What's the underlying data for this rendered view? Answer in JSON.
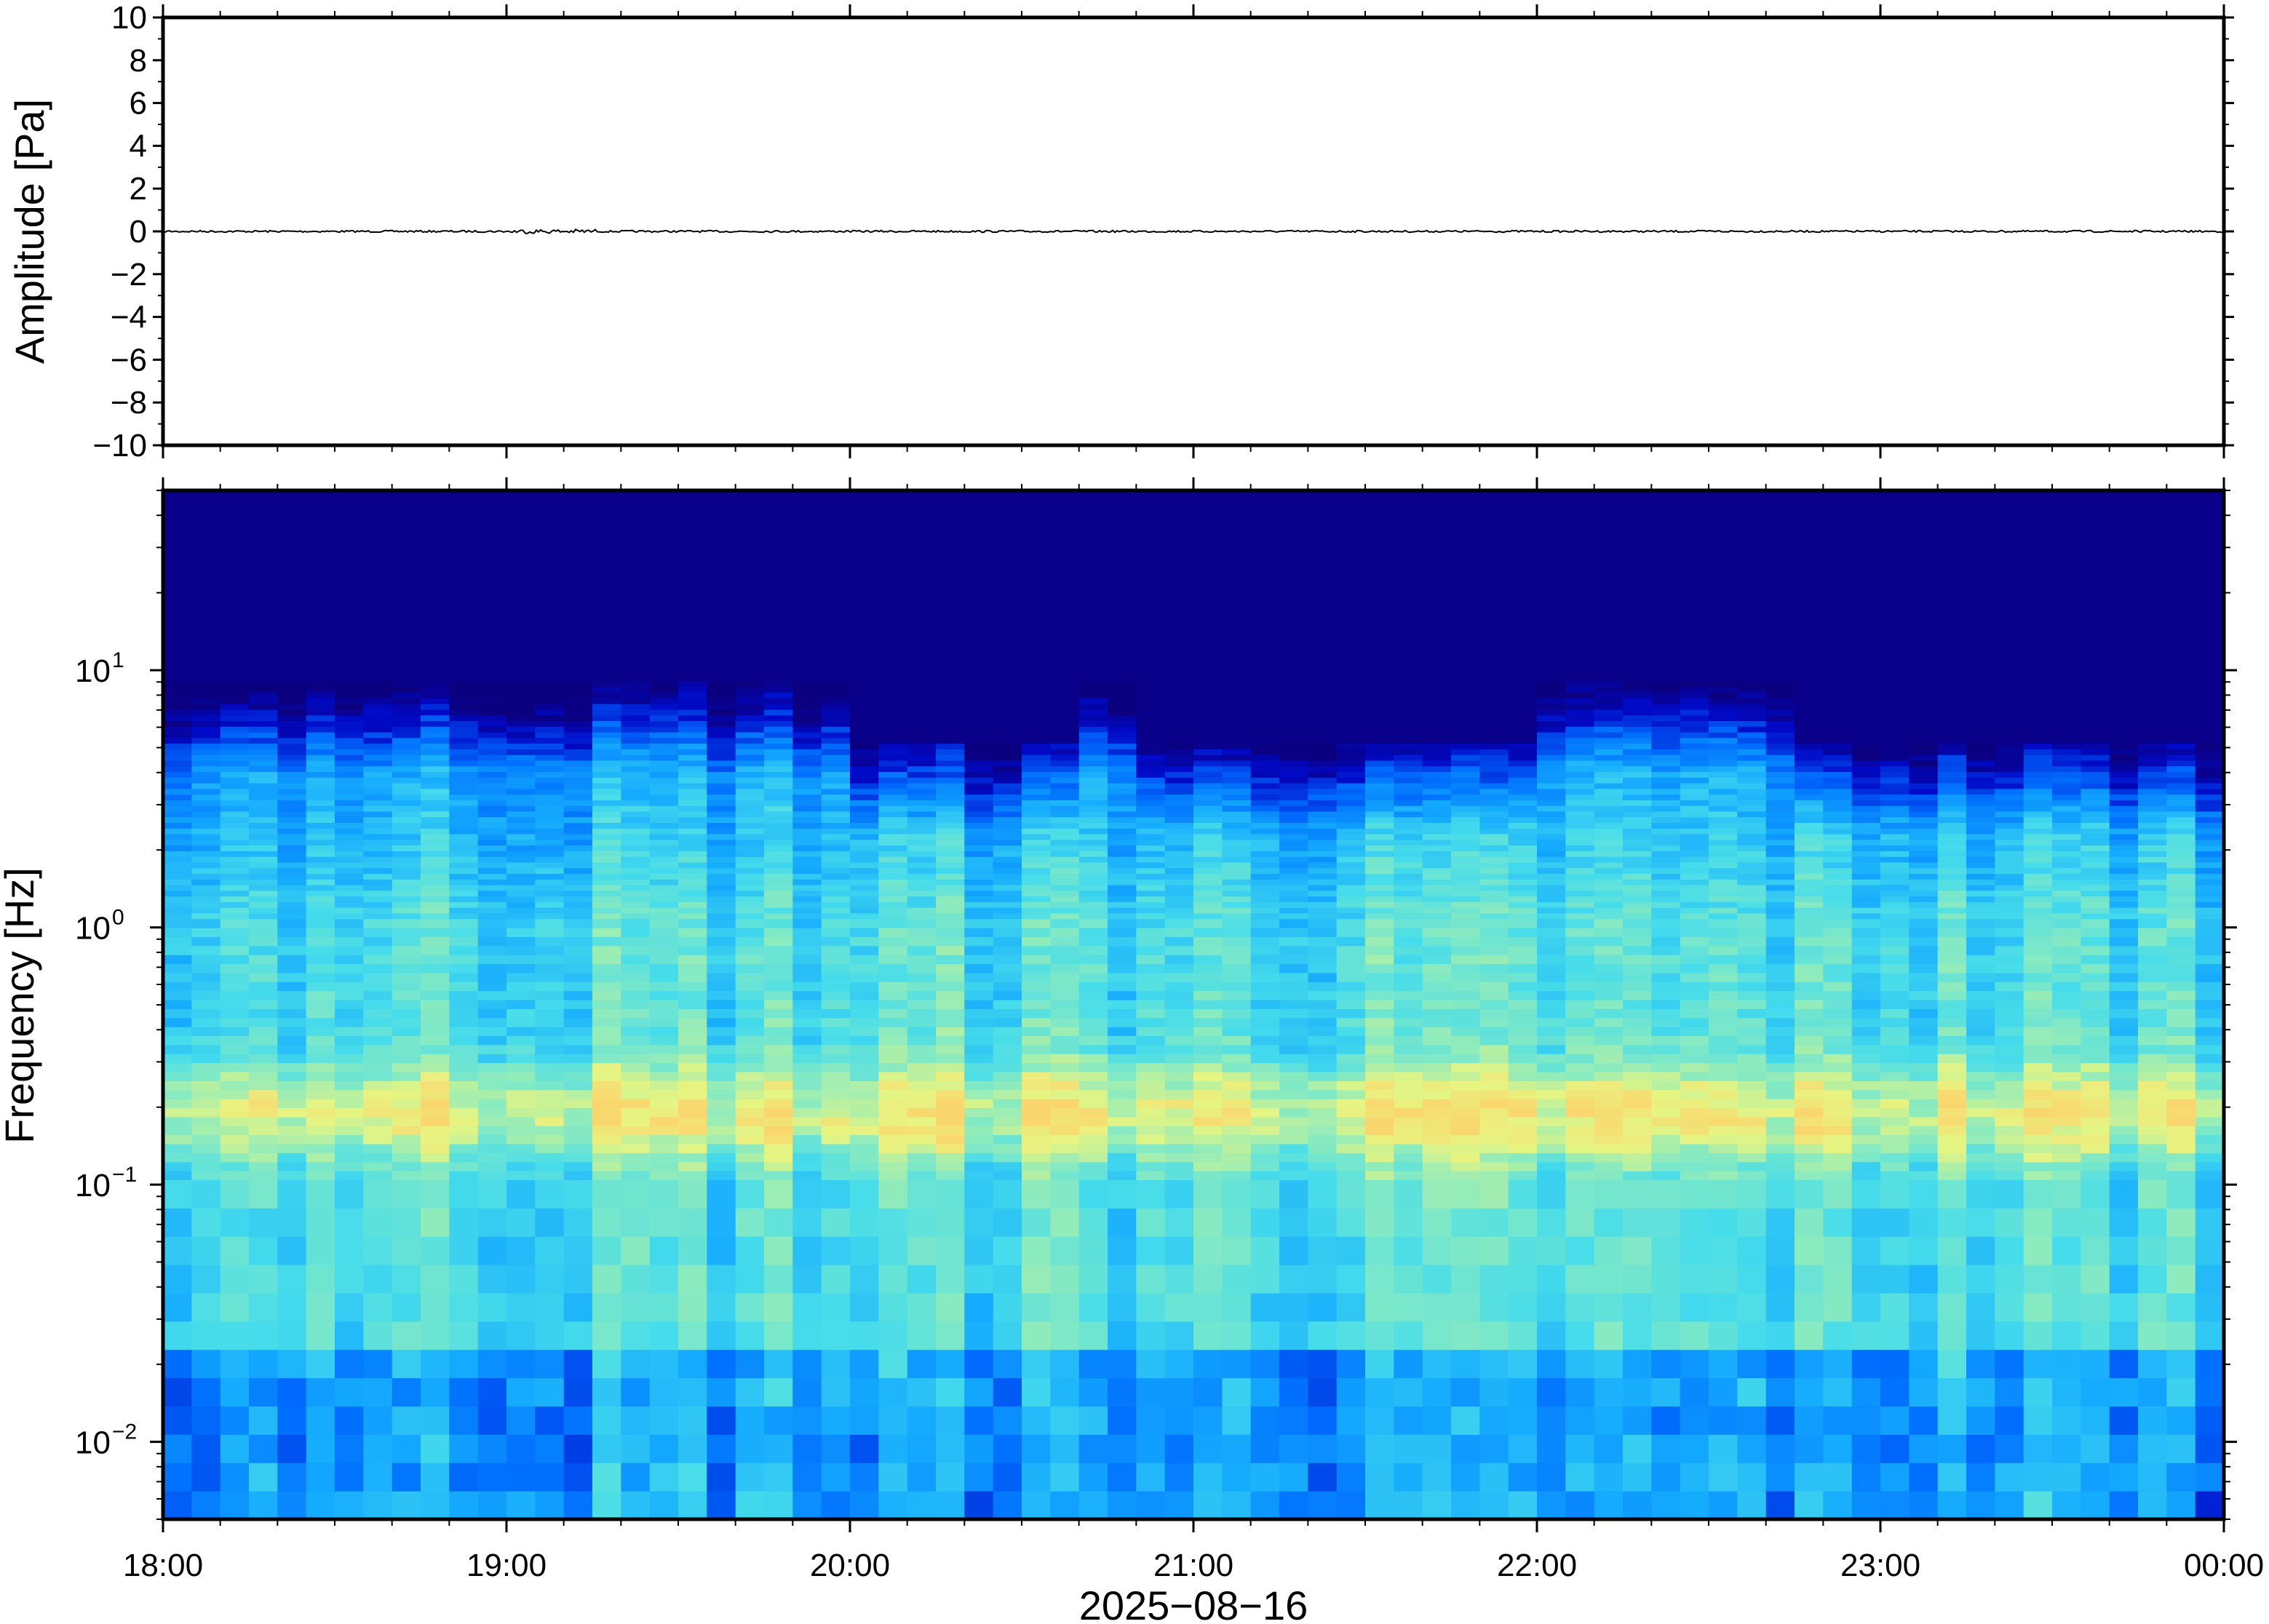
{
  "chart_data": [
    {
      "type": "line",
      "ylabel": "Amplitude [Pa]",
      "ylim": [
        -10,
        10
      ],
      "yticks": [
        "10",
        "8",
        "6",
        "4",
        "2",
        "0",
        "−2",
        "−4",
        "−6",
        "−8",
        "−10"
      ],
      "xlim": [
        "18:00",
        "00:00"
      ],
      "series": [
        {
          "values": "near-zero noise trace, roughly ±0.1 Pa"
        }
      ],
      "grid": false
    },
    {
      "type": "heatmap",
      "ylabel": "Frequency [Hz]",
      "yscale": "log",
      "ylim": [
        0.005,
        50
      ],
      "yticks": [
        {
          "base": "10",
          "exp": "1"
        },
        {
          "base": "10",
          "exp": "0"
        },
        {
          "base": "10",
          "exp": "−1"
        },
        {
          "base": "10",
          "exp": "−2"
        }
      ],
      "xlabel": "2025−08−16",
      "xticks": [
        "18:00",
        "19:00",
        "20:00",
        "21:00",
        "22:00",
        "23:00",
        "00:00"
      ],
      "colormap": "jet",
      "colors": {
        "low": "#0b0080",
        "mid": "#40e0e8",
        "high": "#f0f080"
      },
      "grid": false
    }
  ]
}
